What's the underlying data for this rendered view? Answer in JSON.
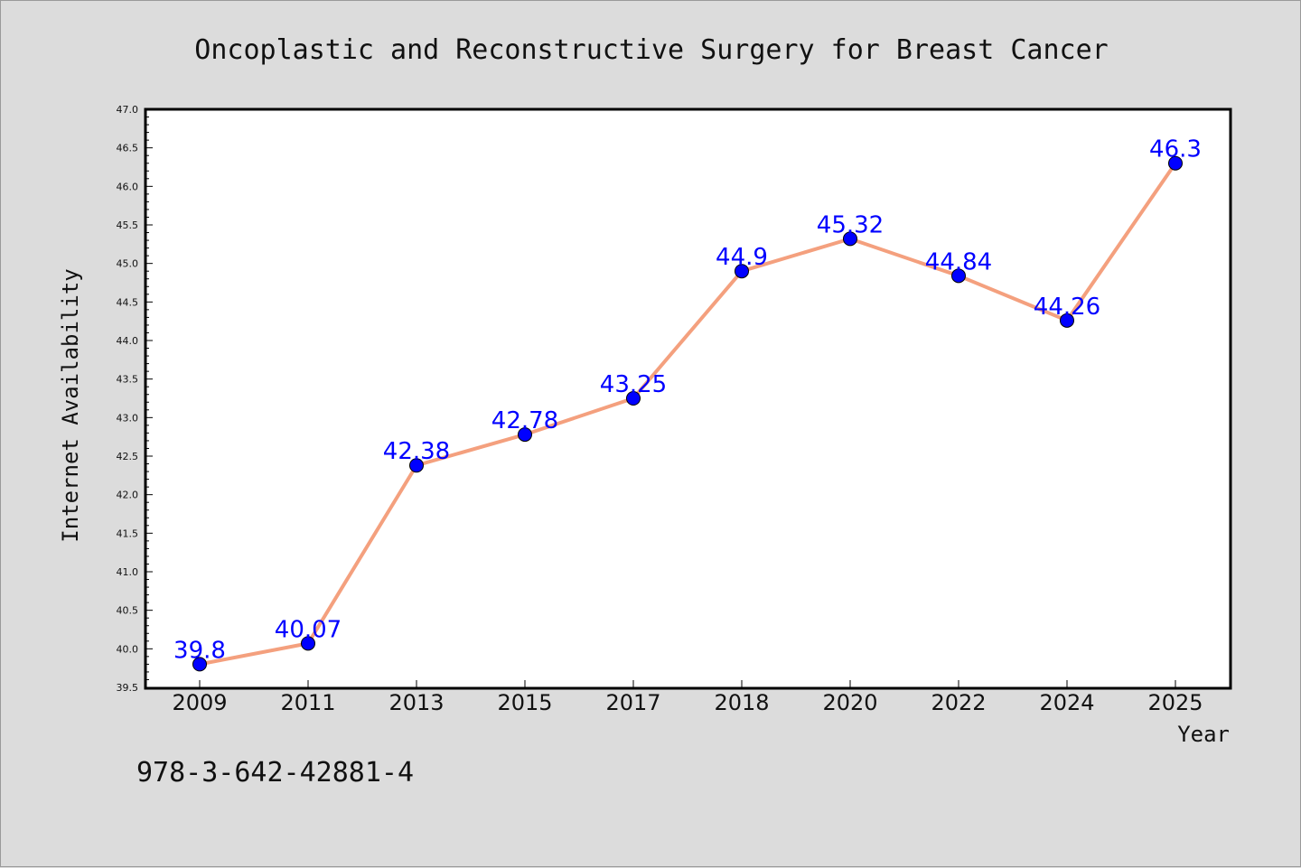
{
  "chart_data": {
    "type": "line",
    "title": "Oncoplastic and Reconstructive Surgery for Breast Cancer",
    "xlabel": "Year",
    "ylabel": "Internet Availability",
    "categories": [
      "2009",
      "2011",
      "2013",
      "2015",
      "2017",
      "2018",
      "2020",
      "2022",
      "2024",
      "2025"
    ],
    "values": [
      39.8,
      40.07,
      42.38,
      42.78,
      43.25,
      44.9,
      45.32,
      44.84,
      44.26,
      46.3
    ],
    "data_labels": [
      "39.8",
      "40.07",
      "42.38",
      "42.78",
      "43.25",
      "44.9",
      "45.32",
      "44.84",
      "44.26",
      "46.3"
    ],
    "ylim": [
      39.5,
      47.0
    ],
    "yticks": [
      "39.5",
      "40.0",
      "40.5",
      "41.0",
      "41.5",
      "42.0",
      "42.5",
      "43.0",
      "43.5",
      "44.0",
      "44.5",
      "45.0",
      "45.5",
      "46.0",
      "46.5",
      "47.0"
    ],
    "grid": false,
    "legend": "none",
    "line_color": "#f4a07e",
    "marker_color": "#0000ff",
    "label_color": "#0000ff"
  },
  "note": "978-3-642-42881-4"
}
